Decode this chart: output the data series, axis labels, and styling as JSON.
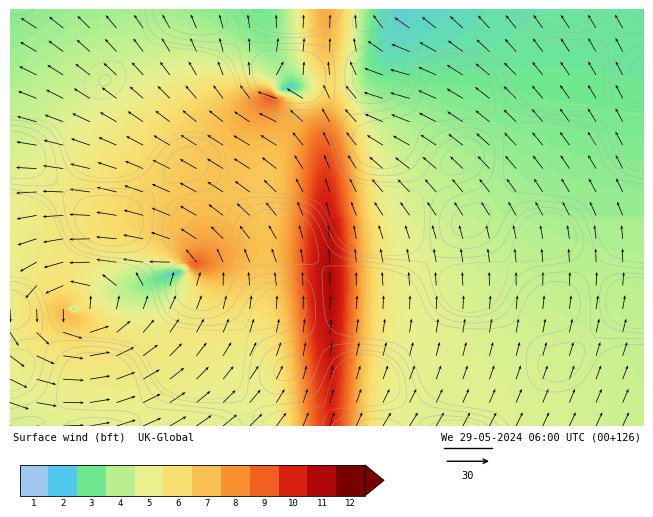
{
  "title_left": "Surface wind (bft)  UK-Global",
  "title_right": "We 29-05-2024 06:00 UTC (00+126)",
  "colorbar_ticks": [
    1,
    2,
    3,
    4,
    5,
    6,
    7,
    8,
    9,
    10,
    11,
    12
  ],
  "colorbar_colors": [
    "#a0c8f0",
    "#50c8f0",
    "#70e890",
    "#b8f090",
    "#e8f090",
    "#f8e070",
    "#f8c050",
    "#f89030",
    "#f06020",
    "#d82010",
    "#b00808",
    "#780000"
  ],
  "wind_scale_label": "30",
  "fig_bg": "#ffffff"
}
